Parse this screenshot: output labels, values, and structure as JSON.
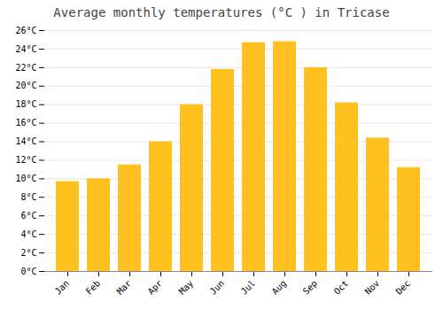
{
  "chart_data": {
    "type": "bar",
    "title": "Average monthly temperatures (°C ) in Tricase",
    "categories": [
      "Jan",
      "Feb",
      "Mar",
      "Apr",
      "May",
      "Jun",
      "Jul",
      "Aug",
      "Sep",
      "Oct",
      "Nov",
      "Dec"
    ],
    "values": [
      9.7,
      10.0,
      11.5,
      14.0,
      18.0,
      21.8,
      24.7,
      24.8,
      22.0,
      18.2,
      14.4,
      11.2
    ],
    "color": "#FFC020",
    "ylim": [
      0,
      26
    ],
    "yticks": [
      {
        "value": 0,
        "label": "0°C"
      },
      {
        "value": 2,
        "label": "2°C"
      },
      {
        "value": 4,
        "label": "4°C"
      },
      {
        "value": 6,
        "label": "6°C"
      },
      {
        "value": 8,
        "label": "8°C"
      },
      {
        "value": 10,
        "label": "10°C"
      },
      {
        "value": 12,
        "label": "12°C"
      },
      {
        "value": 14,
        "label": "14°C"
      },
      {
        "value": 16,
        "label": "16°C"
      },
      {
        "value": 18,
        "label": "18°C"
      },
      {
        "value": 20,
        "label": "20°C"
      },
      {
        "value": 22,
        "label": "22°C"
      },
      {
        "value": 24,
        "label": "24°C"
      },
      {
        "value": 26,
        "label": "26°C"
      }
    ],
    "grid": true
  }
}
